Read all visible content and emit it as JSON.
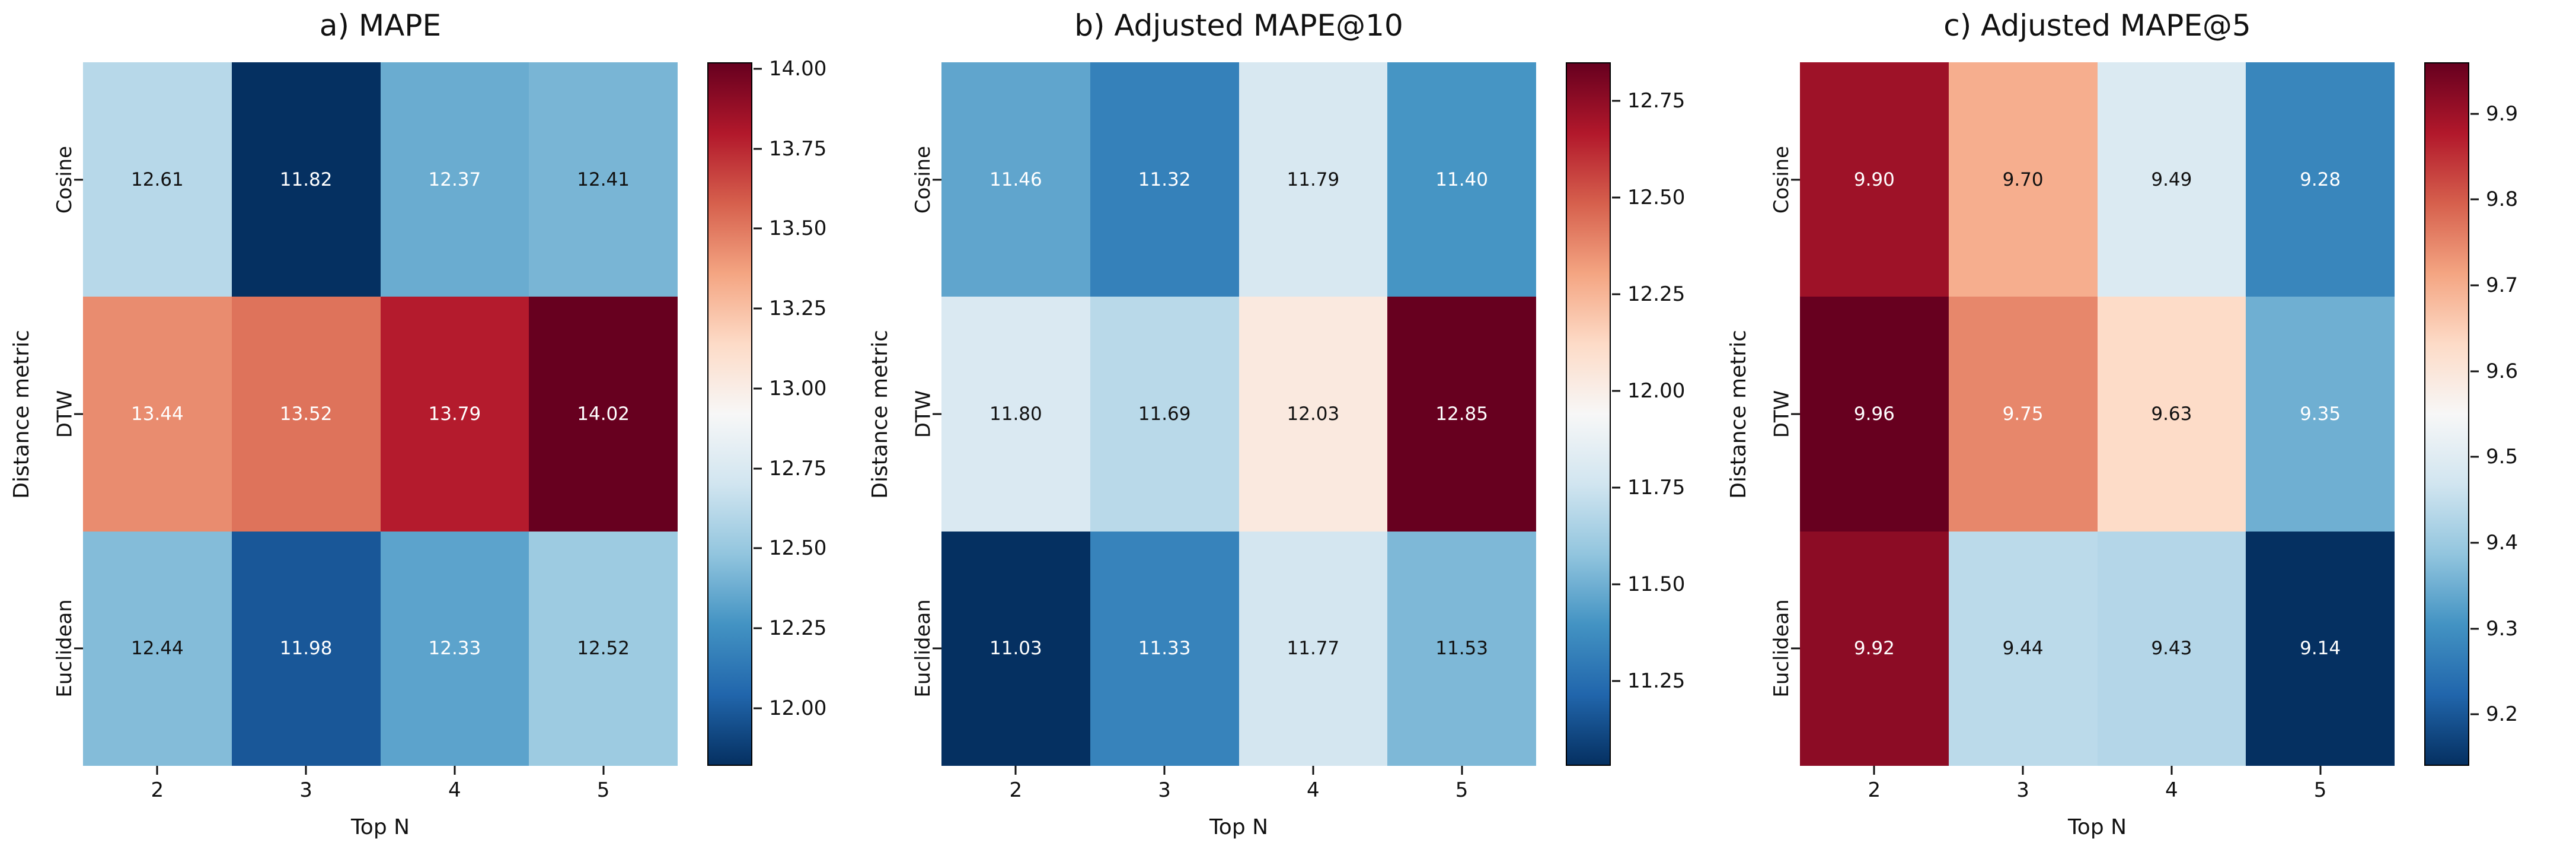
{
  "figure": {
    "background": "#ffffff",
    "text_color": "#111111"
  },
  "colormap": {
    "name": "RdBu_r",
    "stops": [
      "#053061",
      "#2166ac",
      "#4393c3",
      "#92c5de",
      "#d1e5f0",
      "#f7f7f7",
      "#fddbc7",
      "#f4a582",
      "#d6604d",
      "#b2182b",
      "#67001f"
    ]
  },
  "chart_data": [
    {
      "type": "heatmap",
      "title": "a) MAPE",
      "xlabel": "Top N",
      "ylabel": "Distance metric",
      "columns": [
        "2",
        "3",
        "4",
        "5"
      ],
      "rows": [
        "Cosine",
        "DTW",
        "Euclidean"
      ],
      "values": [
        [
          12.61,
          11.82,
          12.37,
          12.41
        ],
        [
          13.44,
          13.52,
          13.79,
          14.02
        ],
        [
          12.44,
          11.98,
          12.33,
          12.52
        ]
      ],
      "vmin": 11.82,
      "vmax": 14.02,
      "value_format": "%.2f",
      "legend_position": "right",
      "colorbar_ticks": [
        {
          "value": 12.0,
          "label": "12.00"
        },
        {
          "value": 12.25,
          "label": "12.25"
        },
        {
          "value": 12.5,
          "label": "12.50"
        },
        {
          "value": 12.75,
          "label": "12.75"
        },
        {
          "value": 13.0,
          "label": "13.00"
        },
        {
          "value": 13.25,
          "label": "13.25"
        },
        {
          "value": 13.5,
          "label": "13.50"
        },
        {
          "value": 13.75,
          "label": "13.75"
        },
        {
          "value": 14.0,
          "label": "14.00"
        }
      ]
    },
    {
      "type": "heatmap",
      "title": "b) Adjusted MAPE@10",
      "xlabel": "Top N",
      "ylabel": "Distance metric",
      "columns": [
        "2",
        "3",
        "4",
        "5"
      ],
      "rows": [
        "Cosine",
        "DTW",
        "Euclidean"
      ],
      "values": [
        [
          11.46,
          11.32,
          11.79,
          11.4
        ],
        [
          11.8,
          11.69,
          12.03,
          12.85
        ],
        [
          11.03,
          11.33,
          11.77,
          11.53
        ]
      ],
      "vmin": 11.03,
      "vmax": 12.85,
      "value_format": "%.2f",
      "legend_position": "right",
      "colorbar_ticks": [
        {
          "value": 11.25,
          "label": "11.25"
        },
        {
          "value": 11.5,
          "label": "11.50"
        },
        {
          "value": 11.75,
          "label": "11.75"
        },
        {
          "value": 12.0,
          "label": "12.00"
        },
        {
          "value": 12.25,
          "label": "12.25"
        },
        {
          "value": 12.5,
          "label": "12.50"
        },
        {
          "value": 12.75,
          "label": "12.75"
        }
      ]
    },
    {
      "type": "heatmap",
      "title": "c) Adjusted MAPE@5",
      "xlabel": "Top N",
      "ylabel": "Distance metric",
      "columns": [
        "2",
        "3",
        "4",
        "5"
      ],
      "rows": [
        "Cosine",
        "DTW",
        "Euclidean"
      ],
      "values": [
        [
          9.9,
          9.7,
          9.49,
          9.28
        ],
        [
          9.96,
          9.75,
          9.63,
          9.35
        ],
        [
          9.92,
          9.44,
          9.43,
          9.14
        ]
      ],
      "vmin": 9.14,
      "vmax": 9.96,
      "value_format": "%.2f",
      "legend_position": "right",
      "colorbar_ticks": [
        {
          "value": 9.2,
          "label": "9.2"
        },
        {
          "value": 9.3,
          "label": "9.3"
        },
        {
          "value": 9.4,
          "label": "9.4"
        },
        {
          "value": 9.5,
          "label": "9.5"
        },
        {
          "value": 9.6,
          "label": "9.6"
        },
        {
          "value": 9.7,
          "label": "9.7"
        },
        {
          "value": 9.8,
          "label": "9.8"
        },
        {
          "value": 9.9,
          "label": "9.9"
        }
      ]
    }
  ]
}
